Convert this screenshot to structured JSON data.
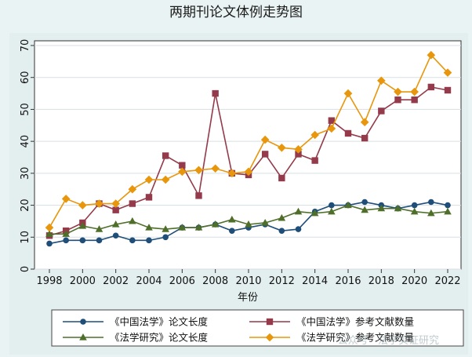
{
  "chart_data": {
    "type": "line",
    "title": "两期刊论文体例走势图",
    "xlabel": "年份",
    "ylabel": "",
    "x": [
      1998,
      1999,
      2000,
      2001,
      2002,
      2003,
      2004,
      2005,
      2006,
      2007,
      2008,
      2009,
      2010,
      2011,
      2012,
      2013,
      2014,
      2015,
      2016,
      2017,
      2018,
      2019,
      2020,
      2021,
      2022
    ],
    "x_ticks": [
      1998,
      2000,
      2002,
      2004,
      2006,
      2008,
      2010,
      2012,
      2014,
      2016,
      2018,
      2020,
      2022
    ],
    "y_ticks": [
      0,
      10,
      20,
      30,
      40,
      50,
      60,
      70
    ],
    "xlim": [
      1998,
      2022
    ],
    "ylim": [
      0,
      70
    ],
    "grid": "horizontal",
    "legend_position": "bottom",
    "series": [
      {
        "name": "《中国法学》论文长度",
        "color": "#1f4e79",
        "marker": "circle",
        "values": [
          8,
          9,
          9,
          9,
          10.5,
          9,
          9,
          10,
          13,
          13,
          14,
          12,
          13,
          14,
          12,
          12.5,
          18,
          20,
          20,
          21,
          20,
          19,
          20,
          21,
          20
        ]
      },
      {
        "name": "《中国法学》参考文献数量",
        "color": "#943a4a",
        "marker": "square",
        "values": [
          10.5,
          12,
          14.5,
          20.5,
          18.5,
          20.5,
          22.5,
          35.5,
          32.5,
          23,
          55,
          30,
          29.5,
          36,
          28.5,
          36,
          34,
          46.5,
          42.5,
          41,
          49.5,
          53,
          53,
          57,
          56
        ]
      },
      {
        "name": "《法学研究》论文长度",
        "color": "#4e6e2a",
        "marker": "triangle",
        "values": [
          11,
          11,
          13.5,
          12.5,
          14,
          15,
          13,
          12.5,
          13,
          13,
          14,
          15.5,
          14,
          14.5,
          16,
          18,
          17.5,
          18,
          20,
          18.5,
          19,
          19,
          18,
          17.5,
          18
        ]
      },
      {
        "name": "《法学研究》参考文献数量",
        "color": "#e8960c",
        "marker": "diamond",
        "values": [
          13,
          22,
          20,
          20.5,
          20.5,
          25,
          28,
          28,
          30.5,
          31,
          31.5,
          30,
          30.5,
          40.5,
          38,
          37.5,
          42,
          44,
          55,
          46,
          59,
          55.5,
          55.5,
          67,
          61.5
        ]
      }
    ],
    "watermark": "公众号 · 法学实证研究"
  }
}
